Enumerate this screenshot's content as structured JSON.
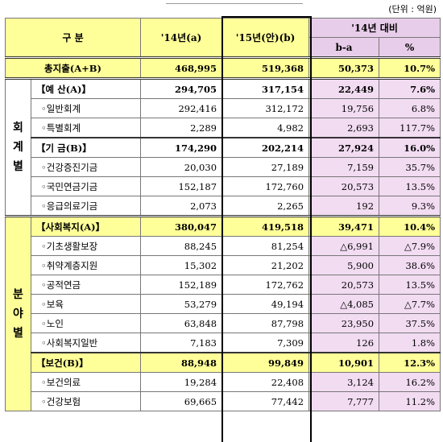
{
  "unit_note": "(단위 : 억원)",
  "header": {
    "category": "구 분",
    "col_2014": "'14년(a)",
    "col_2015": "'15년(안)(b)",
    "compare": "'14년 대비",
    "diff": "b-a",
    "pct": "%"
  },
  "total": {
    "label": "총지출(A+B)",
    "v14": "468,995",
    "v15": "519,368",
    "diff": "50,373",
    "pct": "10.7%"
  },
  "group_account": {
    "label": "회계별",
    "rows": [
      {
        "label": "【예 산(A)】",
        "v14": "294,705",
        "v15": "317,154",
        "diff": "22,449",
        "pct": "7.6%",
        "bold": true
      },
      {
        "label": "◦일반회계",
        "v14": "292,416",
        "v15": "312,172",
        "diff": "19,756",
        "pct": "6.8%"
      },
      {
        "label": "◦특별회계",
        "v14": "2,289",
        "v15": "4,982",
        "diff": "2,693",
        "pct": "117.7%"
      },
      {
        "label": "【기 금(B)】",
        "v14": "174,290",
        "v15": "202,214",
        "diff": "27,924",
        "pct": "16.0%",
        "bold": true
      },
      {
        "label": "◦건강증진기금",
        "v14": "20,030",
        "v15": "27,189",
        "diff": "7,159",
        "pct": "35.7%"
      },
      {
        "label": "◦국민연금기금",
        "v14": "152,187",
        "v15": "172,760",
        "diff": "20,573",
        "pct": "13.5%"
      },
      {
        "label": "◦응급의료기금",
        "v14": "2,073",
        "v15": "2,265",
        "diff": "192",
        "pct": "9.3%"
      }
    ]
  },
  "group_field": {
    "label": "분야별",
    "rows": [
      {
        "label": "【사회복지(A)】",
        "v14": "380,047",
        "v15": "419,518",
        "diff": "39,471",
        "pct": "10.4%",
        "bold": true,
        "hl": true
      },
      {
        "label": "◦기초생활보장",
        "v14": "88,245",
        "v15": "81,254",
        "diff": "△6,991",
        "pct": "△7.9%"
      },
      {
        "label": "◦취약계층지원",
        "v14": "15,302",
        "v15": "21,202",
        "diff": "5,900",
        "pct": "38.6%"
      },
      {
        "label": "◦공적연금",
        "v14": "152,189",
        "v15": "172,762",
        "diff": "20,573",
        "pct": "13.5%"
      },
      {
        "label": "◦보육",
        "v14": "53,279",
        "v15": "49,194",
        "diff": "△4,085",
        "pct": "△7.7%"
      },
      {
        "label": "◦노인",
        "v14": "63,848",
        "v15": "87,798",
        "diff": "23,950",
        "pct": "37.5%"
      },
      {
        "label": "◦사회복지일반",
        "v14": "7,183",
        "v15": "7,309",
        "diff": "126",
        "pct": "1.8%"
      },
      {
        "label": "【보건(B)】",
        "v14": "88,948",
        "v15": "99,849",
        "diff": "10,901",
        "pct": "12.3%",
        "bold": true,
        "hl": true
      },
      {
        "label": "◦보건의료",
        "v14": "19,284",
        "v15": "22,408",
        "diff": "3,124",
        "pct": "16.2%"
      },
      {
        "label": "◦건강보험",
        "v14": "69,665",
        "v15": "77,442",
        "diff": "7,777",
        "pct": "11.2%"
      }
    ]
  }
}
